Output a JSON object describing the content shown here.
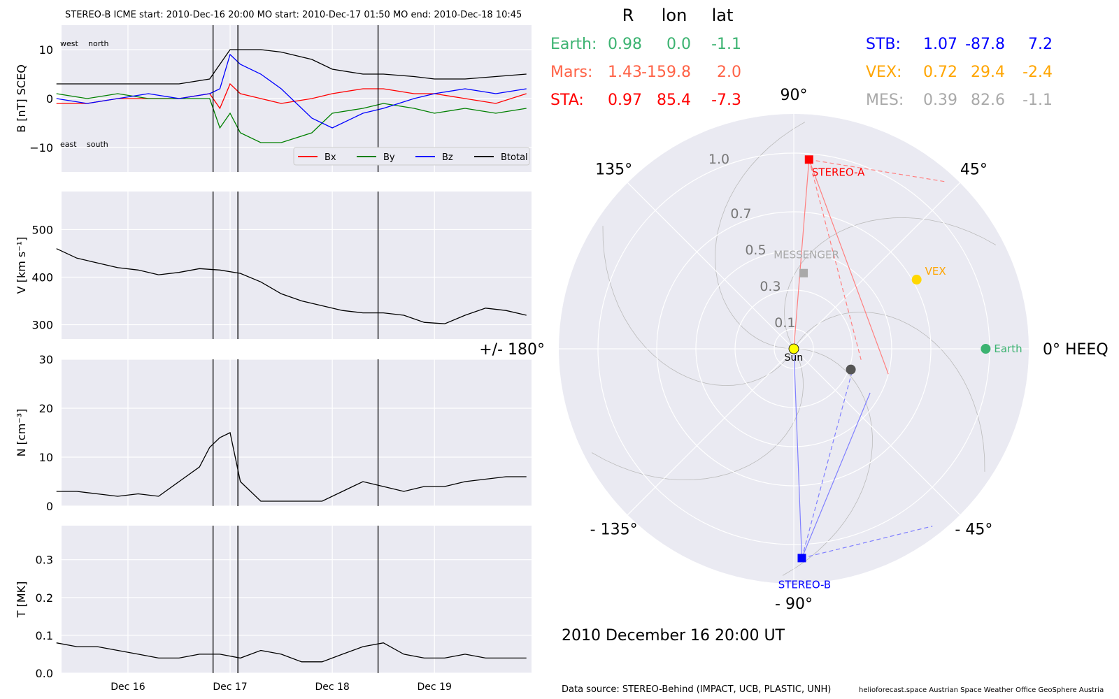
{
  "header": {
    "title": "STEREO-B    ICME start: 2010-Dec-16 20:00    MO start: 2010-Dec-17 01:50    MO end: 2010-Dec-18 10:45"
  },
  "chart_data": [
    {
      "type": "line",
      "panel": "magnetic_field",
      "ylabel": "B [nT] SCEQ",
      "ylim": [
        -15,
        15
      ],
      "yticks": [
        "10",
        "0",
        "−10"
      ],
      "annotations": {
        "top_left": "west",
        "top_right": "north",
        "bottom_left": "east",
        "bottom_right": "south"
      },
      "legend_placement": "bottom-right",
      "grid": true,
      "series": [
        {
          "name": "Bx",
          "color": "#ff0000",
          "x": [
            15.3,
            15.6,
            15.9,
            16.2,
            16.5,
            16.8,
            16.9,
            17.0,
            17.1,
            17.3,
            17.5,
            17.8,
            18.0,
            18.3,
            18.5,
            18.8,
            19.0,
            19.3,
            19.6,
            19.9
          ],
          "y": [
            -1,
            -1,
            0,
            0,
            0,
            1,
            -2,
            3,
            1,
            0,
            -1,
            0,
            1,
            2,
            2,
            1,
            1,
            0,
            -1,
            1
          ]
        },
        {
          "name": "By",
          "color": "#008000",
          "x": [
            15.3,
            15.6,
            15.9,
            16.2,
            16.5,
            16.8,
            16.9,
            17.0,
            17.1,
            17.3,
            17.5,
            17.8,
            18.0,
            18.3,
            18.5,
            18.8,
            19.0,
            19.3,
            19.6,
            19.9
          ],
          "y": [
            1,
            0,
            1,
            0,
            0,
            0,
            -6,
            -3,
            -7,
            -9,
            -9,
            -7,
            -3,
            -2,
            -1,
            -2,
            -3,
            -2,
            -3,
            -2
          ]
        },
        {
          "name": "Bz",
          "color": "#0000ff",
          "x": [
            15.3,
            15.6,
            15.9,
            16.2,
            16.5,
            16.8,
            16.9,
            17.0,
            17.1,
            17.3,
            17.5,
            17.8,
            18.0,
            18.3,
            18.5,
            18.8,
            19.0,
            19.3,
            19.6,
            19.9
          ],
          "y": [
            0,
            -1,
            0,
            1,
            0,
            1,
            2,
            9,
            7,
            5,
            2,
            -4,
            -6,
            -3,
            -2,
            0,
            1,
            2,
            1,
            2
          ]
        },
        {
          "name": "Btotal",
          "color": "#000000",
          "x": [
            15.3,
            15.6,
            15.9,
            16.2,
            16.5,
            16.8,
            16.9,
            17.0,
            17.1,
            17.3,
            17.5,
            17.8,
            18.0,
            18.3,
            18.5,
            18.8,
            19.0,
            19.3,
            19.6,
            19.9
          ],
          "y": [
            3,
            3,
            3,
            3,
            3,
            4,
            7,
            10,
            10,
            10,
            9.5,
            8,
            6,
            5,
            5,
            4.5,
            4,
            4,
            4.5,
            5
          ]
        }
      ]
    },
    {
      "type": "line",
      "panel": "speed",
      "ylabel": "V [km s⁻¹]",
      "ylim": [
        270,
        580
      ],
      "yticks": [
        "500",
        "400",
        "300"
      ],
      "grid": true,
      "series": [
        {
          "name": "",
          "color": "#000000",
          "x": [
            15.3,
            15.5,
            15.7,
            15.9,
            16.1,
            16.3,
            16.5,
            16.7,
            16.9,
            17.1,
            17.3,
            17.5,
            17.7,
            17.9,
            18.1,
            18.3,
            18.5,
            18.7,
            18.9,
            19.1,
            19.3,
            19.5,
            19.7,
            19.9
          ],
          "y": [
            460,
            440,
            430,
            420,
            415,
            405,
            410,
            418,
            415,
            408,
            390,
            365,
            350,
            340,
            330,
            325,
            325,
            320,
            305,
            302,
            320,
            335,
            330,
            320
          ]
        }
      ]
    },
    {
      "type": "line",
      "panel": "density",
      "ylabel": "N [cm⁻³]",
      "ylim": [
        0,
        30
      ],
      "yticks": [
        "30",
        "20",
        "10",
        "0"
      ],
      "grid": true,
      "series": [
        {
          "name": "",
          "color": "#000000",
          "x": [
            15.3,
            15.5,
            15.7,
            15.9,
            16.1,
            16.3,
            16.5,
            16.7,
            16.8,
            16.9,
            17.0,
            17.1,
            17.3,
            17.5,
            17.7,
            17.9,
            18.1,
            18.3,
            18.5,
            18.7,
            18.9,
            19.1,
            19.3,
            19.5,
            19.7,
            19.9
          ],
          "y": [
            3,
            3,
            2.5,
            2,
            2.5,
            2,
            5,
            8,
            12,
            14,
            15,
            5,
            1,
            1,
            1,
            1,
            3,
            5,
            4,
            3,
            4,
            4,
            5,
            5.5,
            6,
            6
          ]
        }
      ]
    },
    {
      "type": "line",
      "panel": "temperature",
      "ylabel": "T [MK]",
      "ylim": [
        0,
        0.39
      ],
      "yticks": [
        "0.3",
        "0.2",
        "0.1",
        "0.0"
      ],
      "xticks": [
        {
          "x": 16,
          "label": "Dec 16"
        },
        {
          "x": 17,
          "label": "Dec 17"
        },
        {
          "x": 18,
          "label": "Dec 18"
        },
        {
          "x": 19,
          "label": "Dec 19"
        }
      ],
      "grid": true,
      "series": [
        {
          "name": "",
          "color": "#000000",
          "x": [
            15.3,
            15.5,
            15.7,
            15.9,
            16.1,
            16.3,
            16.5,
            16.7,
            16.9,
            17.1,
            17.3,
            17.5,
            17.7,
            17.9,
            18.1,
            18.3,
            18.5,
            18.7,
            18.9,
            19.1,
            19.3,
            19.5,
            19.7,
            19.9
          ],
          "y": [
            0.08,
            0.07,
            0.07,
            0.06,
            0.05,
            0.04,
            0.04,
            0.05,
            0.05,
            0.04,
            0.06,
            0.05,
            0.03,
            0.03,
            0.05,
            0.07,
            0.08,
            0.05,
            0.04,
            0.04,
            0.05,
            0.04,
            0.04,
            0.04
          ]
        }
      ]
    },
    {
      "type": "scatter",
      "panel": "polar_position_map",
      "angle_labels": [
        "90°",
        "45°",
        "0° HEEQ",
        "- 45°",
        "- 90°",
        "- 135°",
        "+/- 180°",
        "135°"
      ],
      "radial_labels": [
        "1.0",
        "0.7",
        "0.5",
        "0.3",
        "0.1"
      ],
      "rmax": 1.2,
      "grid": true,
      "bodies": [
        {
          "name": "Sun",
          "r": 0.0,
          "lon": 0,
          "color": "#ffff00",
          "marker": "circle"
        },
        {
          "name": "Earth",
          "r": 0.98,
          "lon": 0.0,
          "color": "#3cb371",
          "marker": "circle"
        },
        {
          "name": "VEX",
          "r": 0.72,
          "lon": 29.4,
          "color": "#ffd700",
          "marker": "circle"
        },
        {
          "name": "MESSENGER",
          "r": 0.39,
          "lon": 82.6,
          "color": "#a9a9a9",
          "marker": "square"
        },
        {
          "name": "STEREO-A",
          "r": 0.97,
          "lon": 85.4,
          "color": "#ff0000",
          "marker": "square"
        },
        {
          "name": "STEREO-B",
          "r": 1.07,
          "lon": -87.8,
          "color": "#0000ff",
          "marker": "square"
        },
        {
          "name": "",
          "r": 0.31,
          "lon": -20.0,
          "color": "#555555",
          "marker": "circle"
        }
      ]
    }
  ],
  "position_table": {
    "columns": [
      "R",
      "lon",
      "lat"
    ],
    "rows": [
      {
        "label": "Earth:",
        "values": [
          "0.98",
          "0.0",
          "-1.1"
        ],
        "color": "#3cb371"
      },
      {
        "label": "Mars:",
        "values": [
          "1.43",
          "-159.8",
          "2.0"
        ],
        "color": "#ff6347"
      },
      {
        "label": "STA:",
        "values": [
          "0.97",
          "85.4",
          "-7.3"
        ],
        "color": "#ff0000"
      },
      {
        "label": "STB:",
        "values": [
          "1.07",
          "-87.8",
          "7.2"
        ],
        "color": "#0000ff"
      },
      {
        "label": "VEX:",
        "values": [
          "0.72",
          "29.4",
          "-2.4"
        ],
        "color": "#ffa500"
      },
      {
        "label": "MES:",
        "values": [
          "0.39",
          "82.6",
          "-1.1"
        ],
        "color": "#a9a9a9"
      }
    ]
  },
  "timestamp": "2010 December 16  20:00 UT",
  "footer": {
    "source": "Data source: STEREO-Behind (IMPACT, UCB, PLASTIC, UNH)",
    "credits": "helioforecast.space   Austrian Space Weather Office   GeoSphere Austria"
  },
  "event_markers_x": [
    16.833,
    17.076,
    18.448
  ]
}
